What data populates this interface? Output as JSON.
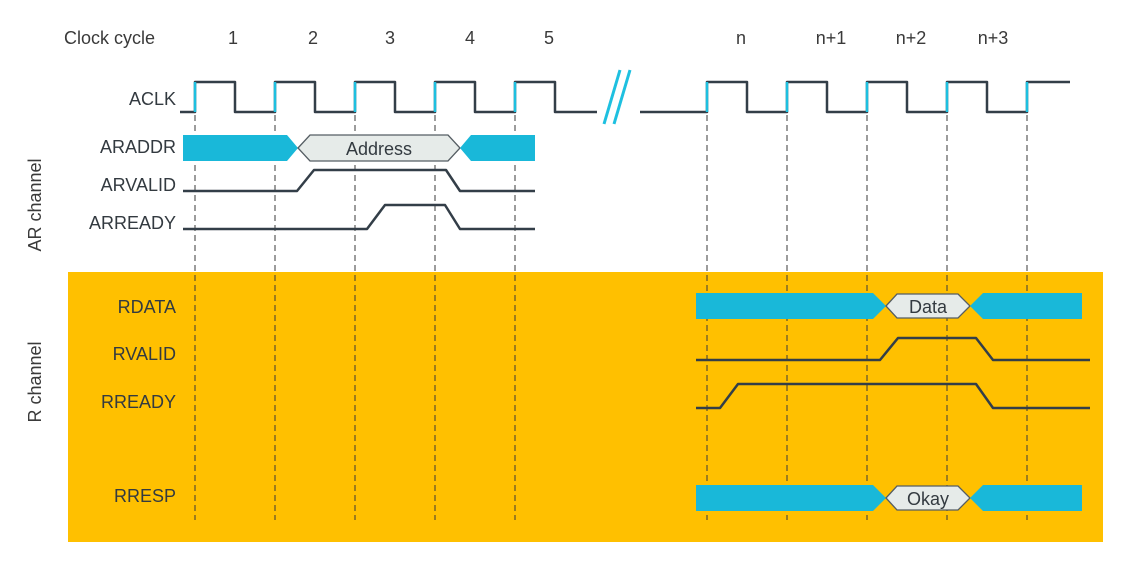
{
  "header": {
    "clock_cycle_label": "Clock cycle",
    "cycles": [
      "1",
      "2",
      "3",
      "4",
      "5",
      "n",
      "n+1",
      "n+2",
      "n+3"
    ]
  },
  "groups": {
    "ar_channel": "AR channel",
    "r_channel": "R channel"
  },
  "signals": {
    "aclk": "ACLK",
    "araddr": "ARADDR",
    "arvalid": "ARVALID",
    "arready": "ARREADY",
    "rdata": "RDATA",
    "rvalid": "RVALID",
    "rready": "RREADY",
    "rresp": "RRESP"
  },
  "bus_values": {
    "address": "Address",
    "data": "Data",
    "okay": "Okay"
  },
  "colors": {
    "r_channel_background": "#ffc000",
    "bus_fill": "#19b8d9",
    "clock_edge": "#1ec0e0",
    "wave_line": "#333e48"
  }
}
